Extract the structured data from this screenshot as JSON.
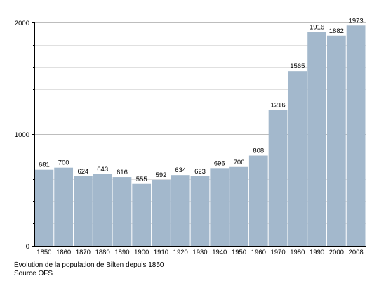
{
  "chart_data": {
    "type": "bar",
    "title": "",
    "xlabel": "",
    "ylabel": "",
    "categories": [
      "1850",
      "1860",
      "1870",
      "1880",
      "1890",
      "1900",
      "1910",
      "1920",
      "1930",
      "1940",
      "1950",
      "1960",
      "1970",
      "1980",
      "1990",
      "2000",
      "2008"
    ],
    "values": [
      681,
      700,
      624,
      643,
      616,
      555,
      592,
      634,
      623,
      696,
      706,
      808,
      1216,
      1565,
      1916,
      1882,
      1973
    ],
    "value_labels": [
      "681",
      "700",
      "624",
      "643",
      "616",
      "555",
      "592",
      "634",
      "623",
      "696",
      "706",
      "808",
      "1216",
      "1565",
      "1916",
      "1882",
      "1973"
    ],
    "ylim": [
      0,
      2000
    ],
    "y_ticks": [
      0,
      1000,
      2000
    ],
    "y_tick_labels": [
      "0",
      "1000",
      "2000"
    ],
    "y_minor_gridlines": [
      200,
      400,
      600,
      800,
      1200,
      1400,
      1600,
      1800
    ],
    "grid": true,
    "legend": "none",
    "bar_color": "#a3b8cc",
    "grid_color": "#e0e0e0",
    "axis_color": "#000000"
  },
  "caption": {
    "line1": "Évolution de la population de Bilten depuis 1850",
    "line2": "Source OFS"
  }
}
